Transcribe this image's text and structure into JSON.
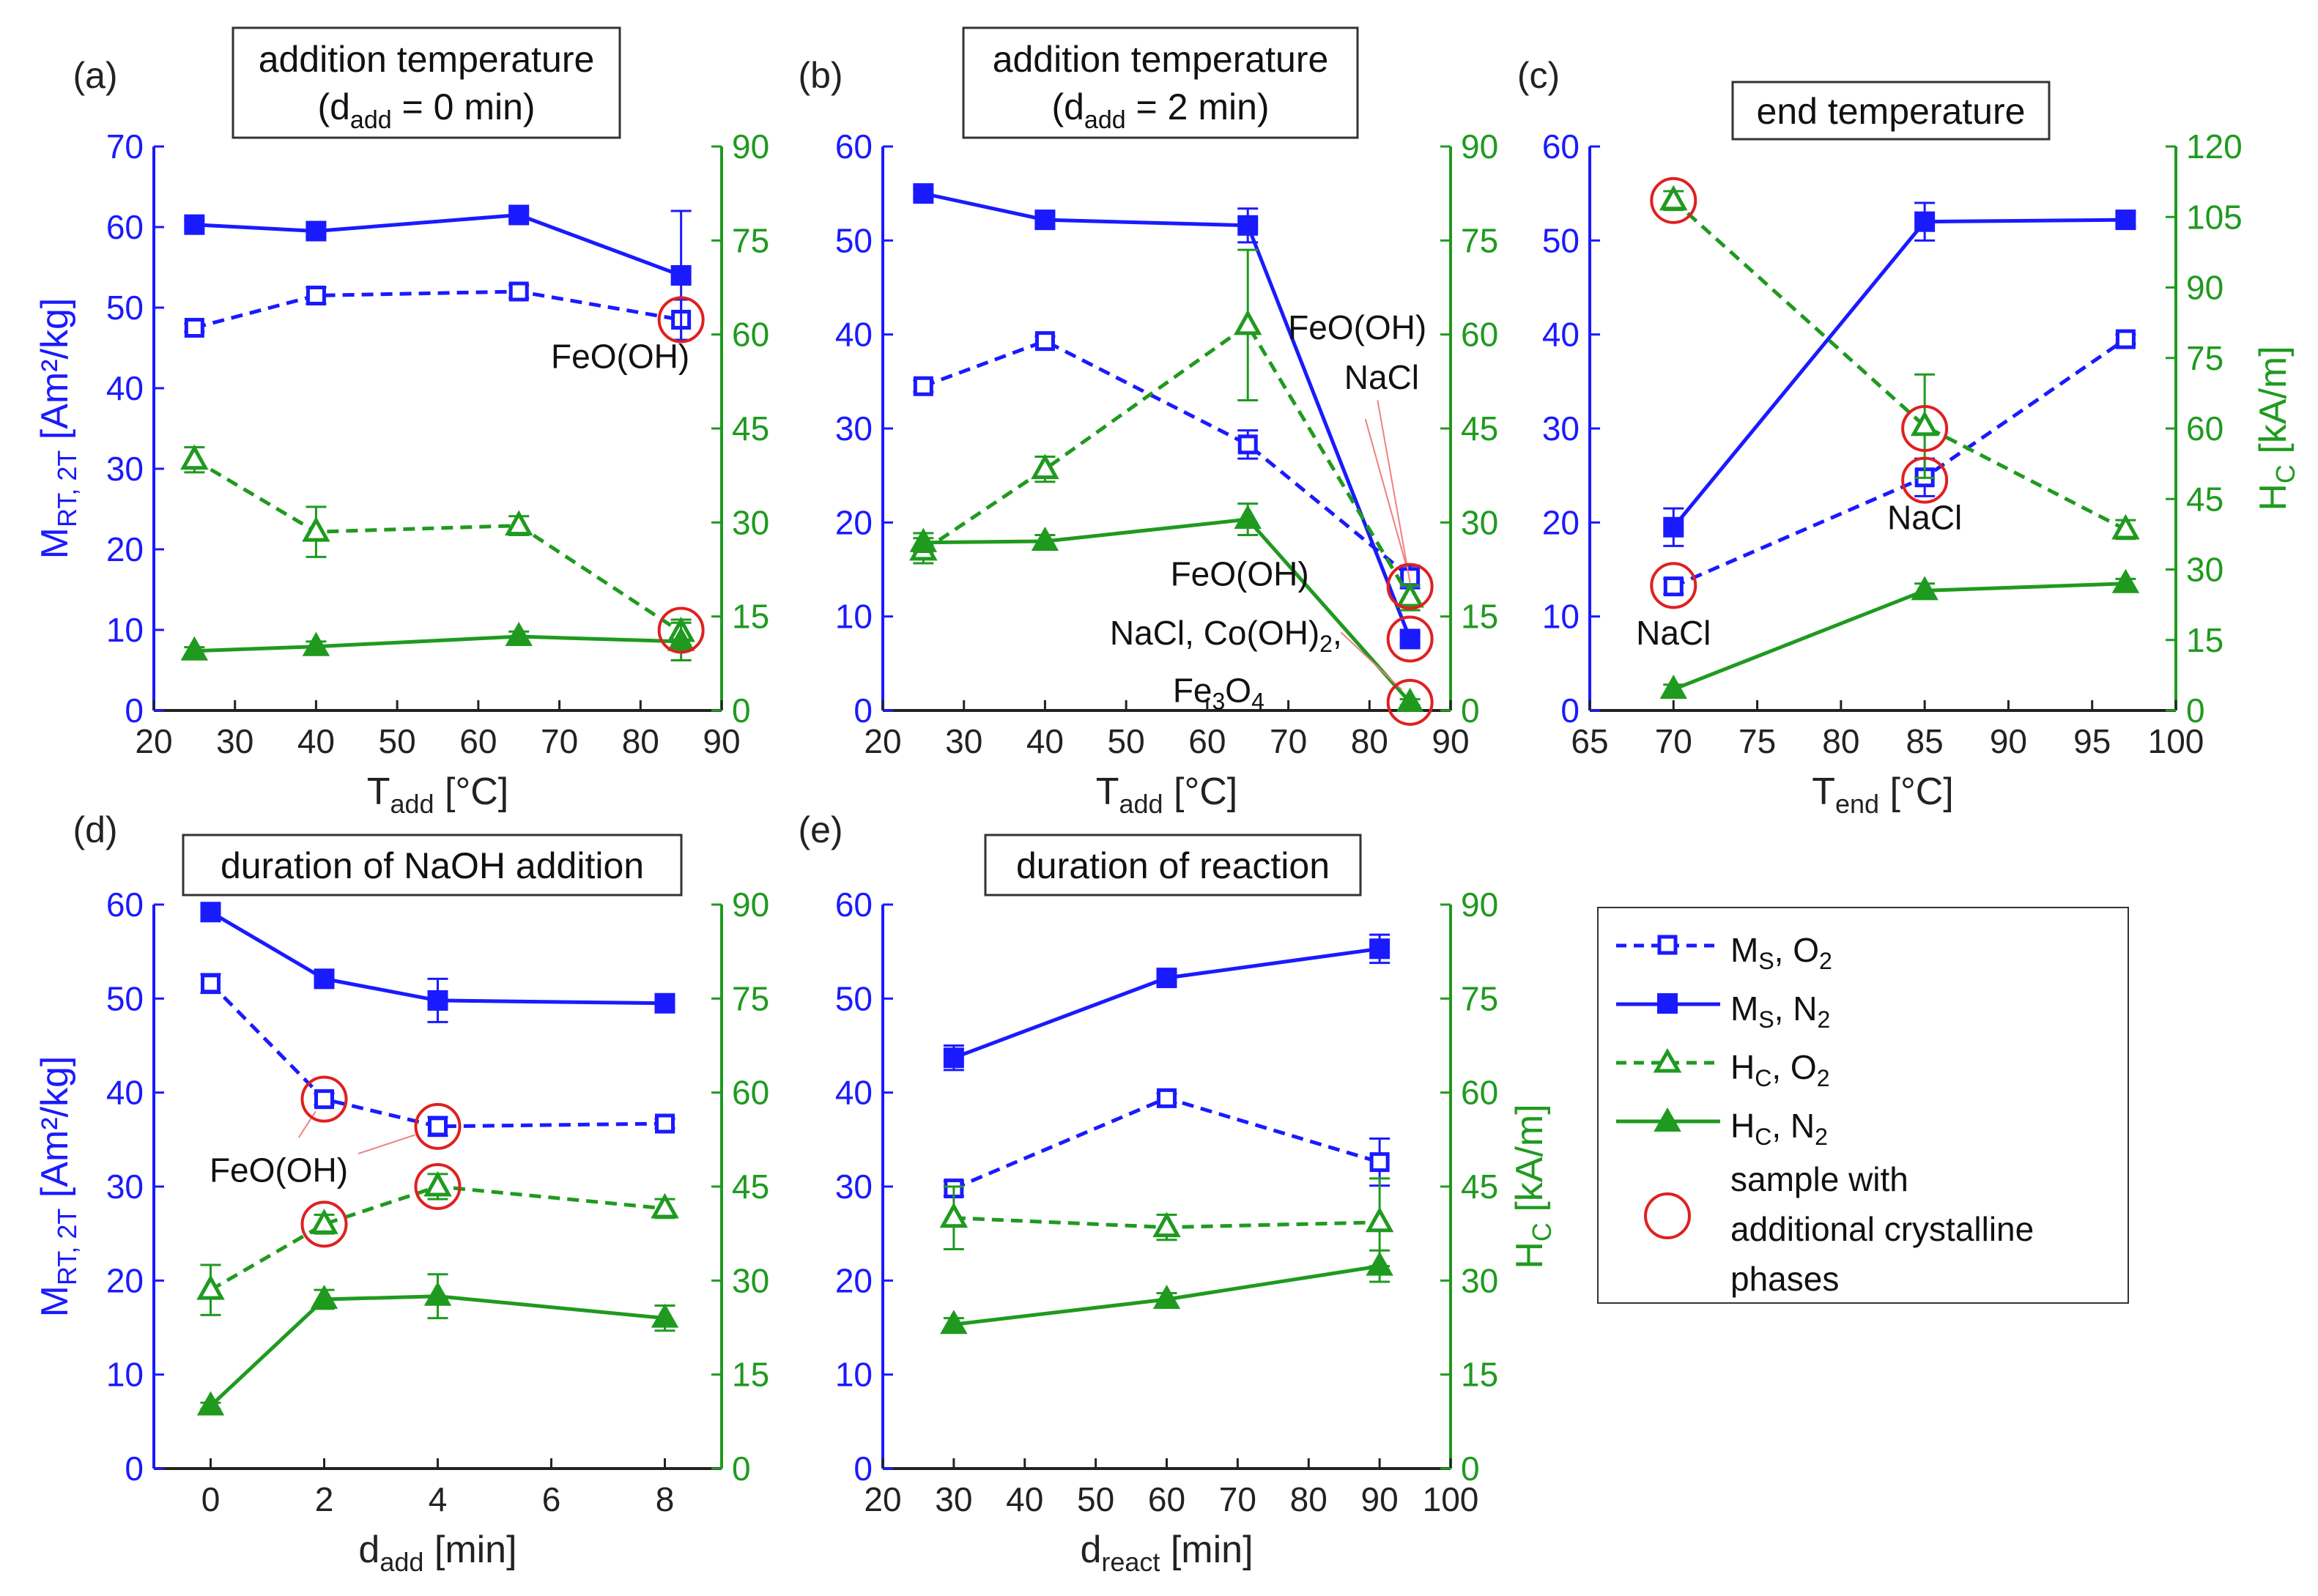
{
  "colors": {
    "blue": "#1a1aff",
    "green": "#1f9a1f",
    "red": "#e02020",
    "axis_black": "#222222"
  },
  "legend": {
    "ms_o2": "M",
    "ms_o2_sub": "S",
    "ms_o2_gas": ", O",
    "gas_sub": "2",
    "ms_n2": "M",
    "ms_n2_sub": "S",
    "ms_n2_gas": ", N",
    "hc_o2": "H",
    "hc_o2_sub": "C",
    "hc_o2_gas": ", O",
    "hc_n2": "H",
    "hc_n2_sub": "C",
    "hc_n2_gas": ", N",
    "circle_line1": "sample with",
    "circle_line2": "additional crystalline",
    "circle_line3": "phases"
  },
  "chart_data": [
    {
      "panel": "(a)",
      "type": "line",
      "title_line1": "addition temperature",
      "title_line2_pre": "(d",
      "title_line2_sub": "add",
      "title_line2_post": " = 0 min)",
      "xlabel": "T",
      "xlabel_sub": "add",
      "xlabel_unit": " [°C]",
      "ylabel_left": "M",
      "ylabel_left_sub": "RT, 2T",
      "ylabel_left_unit": " [Am²/kg]",
      "ylabel_right": "",
      "xlim": [
        20,
        90
      ],
      "xticks": [
        20,
        30,
        40,
        50,
        60,
        70,
        80,
        90
      ],
      "ylim_left": [
        0,
        70
      ],
      "yticks_left": [
        0,
        10,
        20,
        30,
        40,
        50,
        60,
        70
      ],
      "ylim_right": [
        0,
        90
      ],
      "yticks_right": [
        0,
        15,
        30,
        45,
        60,
        75,
        90
      ],
      "series": [
        {
          "name": "MS, O2",
          "axis": "left",
          "color": "blue",
          "style": "dashed",
          "marker": "open-square",
          "x": [
            25,
            40,
            65,
            85
          ],
          "y": [
            47.5,
            51.5,
            52,
            48.5
          ],
          "err": [
            0.5,
            1.0,
            0.8,
            2.5
          ]
        },
        {
          "name": "MS, N2",
          "axis": "left",
          "color": "blue",
          "style": "solid",
          "marker": "filled-square",
          "x": [
            25,
            40,
            65,
            85
          ],
          "y": [
            60.3,
            59.5,
            61.5,
            54
          ],
          "err": [
            0.6,
            0.7,
            0.6,
            8
          ]
        },
        {
          "name": "HC, O2",
          "axis": "right",
          "color": "green",
          "style": "dashed",
          "marker": "open-triangle",
          "x": [
            25,
            40,
            65,
            85
          ],
          "y": [
            40,
            28.5,
            29.5,
            12.5
          ],
          "err": [
            2,
            4,
            1.5,
            2
          ]
        },
        {
          "name": "HC, N2",
          "axis": "right",
          "color": "green",
          "style": "solid",
          "marker": "filled-triangle",
          "x": [
            25,
            40,
            65,
            85
          ],
          "y": [
            9.5,
            10.2,
            11.8,
            11
          ],
          "err": [
            0.6,
            0.8,
            0.8,
            3
          ]
        }
      ],
      "circles": [
        {
          "axis": "left",
          "x": 85,
          "y": 48.5
        },
        {
          "axis": "right",
          "x": 85,
          "y": 12.8
        }
      ],
      "annotations": [
        {
          "lines": [
            "FeO(OH)"
          ],
          "ax": "left",
          "x": 77.5,
          "y": 42.5,
          "anchor": "middle"
        }
      ]
    },
    {
      "panel": "(b)",
      "type": "line",
      "title_line1": "addition temperature",
      "title_line2_pre": "(d",
      "title_line2_sub": "add",
      "title_line2_post": " = 2 min)",
      "xlabel": "T",
      "xlabel_sub": "add",
      "xlabel_unit": " [°C]",
      "ylabel_left": "",
      "ylabel_right": "",
      "xlim": [
        20,
        90
      ],
      "xticks": [
        20,
        30,
        40,
        50,
        60,
        70,
        80,
        90
      ],
      "ylim_left": [
        0,
        60
      ],
      "yticks_left": [
        0,
        10,
        20,
        30,
        40,
        50,
        60
      ],
      "ylim_right": [
        0,
        90
      ],
      "yticks_right": [
        0,
        15,
        30,
        45,
        60,
        75,
        90
      ],
      "series": [
        {
          "name": "MS, O2",
          "axis": "left",
          "color": "blue",
          "style": "dashed",
          "marker": "open-square",
          "x": [
            25,
            40,
            65,
            85
          ],
          "y": [
            34.5,
            39.3,
            28.3,
            14.2
          ],
          "err": [
            0.6,
            0.5,
            1.5,
            1.2
          ]
        },
        {
          "name": "MS, N2",
          "axis": "left",
          "color": "blue",
          "style": "solid",
          "marker": "filled-square",
          "x": [
            25,
            40,
            65,
            85
          ],
          "y": [
            55,
            52.2,
            51.6,
            7.6
          ],
          "err": [
            0.5,
            0.8,
            1.8,
            0.6
          ]
        },
        {
          "name": "HC, O2",
          "axis": "right",
          "color": "green",
          "style": "dashed",
          "marker": "open-triangle",
          "x": [
            25,
            40,
            65,
            85
          ],
          "y": [
            25.5,
            38.5,
            61.5,
            18
          ],
          "err": [
            2,
            2,
            12,
            2
          ]
        },
        {
          "name": "HC, N2",
          "axis": "right",
          "color": "green",
          "style": "solid",
          "marker": "filled-triangle",
          "x": [
            25,
            40,
            65,
            85
          ],
          "y": [
            26.8,
            27,
            30.5,
            1.3
          ],
          "err": [
            1.5,
            1,
            2.5,
            0.5
          ]
        }
      ],
      "circles": [
        {
          "axis": "left",
          "x": 85,
          "y": 13.2
        },
        {
          "axis": "left",
          "x": 85,
          "y": 7.6
        },
        {
          "axis": "right",
          "x": 85,
          "y": 1.3
        }
      ],
      "annotations": [
        {
          "lines": [
            "FeO(OH)"
          ],
          "ax": "left",
          "x": 78.5,
          "y": 39.5,
          "anchor": "middle"
        },
        {
          "lines": [
            "NaCl"
          ],
          "ax": "left",
          "x": 81.5,
          "y": 34.2,
          "anchor": "middle"
        },
        {
          "lines": [
            "FeO(OH)"
          ],
          "ax": "left",
          "x": 64,
          "y": 13.3,
          "anchor": "middle"
        },
        {
          "lines": [
            "NaCl, Co(OH)"
          ],
          "ax": "left",
          "x": 62.3,
          "y": 7.0,
          "anchor": "middle",
          "sub": "2",
          "after": ","
        },
        {
          "lines": [
            "Fe"
          ],
          "ax": "left",
          "x": 61.4,
          "y": 0.9,
          "anchor": "middle",
          "formula": "Fe3O4"
        }
      ],
      "leaders": [
        {
          "ax": "left",
          "x1": 81.0,
          "y1": 33.0,
          "x2": 85.0,
          "y2": 13.6
        },
        {
          "ax": "left",
          "x1": 79.5,
          "y1": 31.0,
          "x2": 84.5,
          "y2": 15.5
        },
        {
          "ax": "left",
          "x1": 76.5,
          "y1": 8.3,
          "x2": 84.0,
          "y2": 2.2
        }
      ]
    },
    {
      "panel": "(c)",
      "type": "line",
      "title_line1": "end temperature",
      "xlabel": "T",
      "xlabel_sub": "end",
      "xlabel_unit": " [°C]",
      "ylabel_left": "",
      "ylabel_right": "H",
      "ylabel_right_sub": "C",
      "ylabel_right_unit": " [kA/m]",
      "xlim": [
        65,
        100
      ],
      "xticks": [
        65,
        70,
        75,
        80,
        85,
        90,
        95,
        100
      ],
      "ylim_left": [
        0,
        60
      ],
      "yticks_left": [
        0,
        10,
        20,
        30,
        40,
        50,
        60
      ],
      "ylim_right": [
        0,
        120
      ],
      "yticks_right": [
        0,
        15,
        30,
        45,
        60,
        75,
        90,
        105,
        120
      ],
      "series": [
        {
          "name": "MS, O2",
          "axis": "left",
          "color": "blue",
          "style": "dashed",
          "marker": "open-square",
          "x": [
            70,
            85,
            97
          ],
          "y": [
            13.2,
            24.8,
            39.5
          ],
          "err": [
            0.8,
            2,
            0.5
          ]
        },
        {
          "name": "MS, N2",
          "axis": "left",
          "color": "blue",
          "style": "solid",
          "marker": "filled-square",
          "x": [
            70,
            85,
            97
          ],
          "y": [
            19.5,
            52,
            52.2
          ],
          "err": [
            2,
            2,
            0.8
          ]
        },
        {
          "name": "HC, O2",
          "axis": "right",
          "color": "green",
          "style": "dashed",
          "marker": "open-triangle",
          "x": [
            70,
            85,
            97
          ],
          "y": [
            108.5,
            60.5,
            38.5
          ],
          "err": [
            2,
            11,
            2
          ]
        },
        {
          "name": "HC, N2",
          "axis": "right",
          "color": "green",
          "style": "solid",
          "marker": "filled-triangle",
          "x": [
            70,
            85,
            97
          ],
          "y": [
            4.5,
            25.5,
            27
          ],
          "err": [
            1,
            1.5,
            1
          ]
        }
      ],
      "circles": [
        {
          "axis": "right",
          "x": 70,
          "y": 108.5
        },
        {
          "axis": "left",
          "x": 85,
          "y": 30
        },
        {
          "axis": "left",
          "x": 85,
          "y": 24.5
        },
        {
          "axis": "left",
          "x": 70,
          "y": 13.3
        }
      ],
      "annotations": [
        {
          "lines": [
            "NaCl"
          ],
          "ax": "left",
          "x": 85.0,
          "y": 19.3,
          "anchor": "middle"
        },
        {
          "lines": [
            "NaCl"
          ],
          "ax": "left",
          "x": 70.0,
          "y": 7.0,
          "anchor": "middle"
        }
      ]
    },
    {
      "panel": "(d)",
      "type": "line",
      "title_line1": "duration of NaOH addition",
      "xlabel": "d",
      "xlabel_sub": "add",
      "xlabel_unit": " [min]",
      "ylabel_left": "M",
      "ylabel_left_sub": "RT, 2T",
      "ylabel_left_unit": " [Am²/kg]",
      "ylabel_right": "",
      "xlim": [
        -1,
        9
      ],
      "xticks": [
        0,
        2,
        4,
        6,
        8
      ],
      "ylim_left": [
        0,
        60
      ],
      "yticks_left": [
        0,
        10,
        20,
        30,
        40,
        50,
        60
      ],
      "ylim_right": [
        0,
        90
      ],
      "yticks_right": [
        0,
        15,
        30,
        45,
        60,
        75,
        90
      ],
      "series": [
        {
          "name": "MS, O2",
          "axis": "left",
          "color": "blue",
          "style": "dashed",
          "marker": "open-square",
          "x": [
            0,
            2,
            4,
            8
          ],
          "y": [
            51.6,
            39.3,
            36.4,
            36.7
          ],
          "err": [
            1,
            0.6,
            1,
            0.5
          ]
        },
        {
          "name": "MS, N2",
          "axis": "left",
          "color": "blue",
          "style": "solid",
          "marker": "filled-square",
          "x": [
            0,
            2,
            4,
            8
          ],
          "y": [
            59.2,
            52.1,
            49.8,
            49.5
          ],
          "err": [
            0.6,
            0.8,
            2.3,
            0.6
          ]
        },
        {
          "name": "HC, O2",
          "axis": "right",
          "color": "green",
          "style": "dashed",
          "marker": "open-triangle",
          "x": [
            0,
            2,
            4,
            8
          ],
          "y": [
            28.5,
            39,
            45,
            41.5
          ],
          "err": [
            4,
            1.5,
            2,
            1.5
          ]
        },
        {
          "name": "HC, N2",
          "axis": "right",
          "color": "green",
          "style": "solid",
          "marker": "filled-triangle",
          "x": [
            0,
            2,
            4,
            8
          ],
          "y": [
            10,
            27,
            27.5,
            24
          ],
          "err": [
            0.5,
            1.5,
            3.5,
            2
          ]
        }
      ],
      "circles": [
        {
          "axis": "left",
          "x": 2,
          "y": 39.3
        },
        {
          "axis": "left",
          "x": 4,
          "y": 36.4
        },
        {
          "axis": "right",
          "x": 2,
          "y": 39
        },
        {
          "axis": "right",
          "x": 4,
          "y": 45
        }
      ],
      "annotations": [
        {
          "lines": [
            "FeO(OH)"
          ],
          "ax": "left",
          "x": 1.2,
          "y": 30.5,
          "anchor": "middle"
        }
      ],
      "leaders": [
        {
          "ax": "left",
          "x1": 1.55,
          "y1": 35.2,
          "x2": 1.85,
          "y2": 38.0
        },
        {
          "ax": "left",
          "x1": 2.6,
          "y1": 33.5,
          "x2": 3.6,
          "y2": 35.5
        }
      ]
    },
    {
      "panel": "(e)",
      "type": "line",
      "title_line1": "duration of reaction",
      "xlabel": "d",
      "xlabel_sub": "react",
      "xlabel_unit": " [min]",
      "ylabel_left": "",
      "ylabel_right": "H",
      "ylabel_right_sub": "C",
      "ylabel_right_unit": " [kA/m]",
      "xlim": [
        20,
        100
      ],
      "xticks": [
        20,
        30,
        40,
        50,
        60,
        70,
        80,
        90,
        100
      ],
      "ylim_left": [
        0,
        60
      ],
      "yticks_left": [
        0,
        10,
        20,
        30,
        40,
        50,
        60
      ],
      "ylim_right": [
        0,
        90
      ],
      "yticks_right": [
        0,
        15,
        30,
        45,
        60,
        75,
        90
      ],
      "series": [
        {
          "name": "MS, O2",
          "axis": "left",
          "color": "blue",
          "style": "dashed",
          "marker": "open-square",
          "x": [
            30,
            60,
            90
          ],
          "y": [
            29.8,
            39.4,
            32.6
          ],
          "err": [
            0.8,
            0.5,
            2.5
          ]
        },
        {
          "name": "MS, N2",
          "axis": "left",
          "color": "blue",
          "style": "solid",
          "marker": "filled-square",
          "x": [
            30,
            60,
            90
          ],
          "y": [
            43.7,
            52.2,
            55.3
          ],
          "err": [
            1.3,
            0.8,
            1.5
          ]
        },
        {
          "name": "HC, O2",
          "axis": "right",
          "color": "green",
          "style": "dashed",
          "marker": "open-triangle",
          "x": [
            30,
            60,
            90
          ],
          "y": [
            40,
            38.5,
            39.3
          ],
          "err": [
            5,
            2,
            7
          ]
        },
        {
          "name": "HC, N2",
          "axis": "right",
          "color": "green",
          "style": "solid",
          "marker": "filled-triangle",
          "x": [
            30,
            60,
            90
          ],
          "y": [
            23,
            27,
            32.3
          ],
          "err": [
            1,
            1,
            2.5
          ]
        }
      ],
      "circles": [],
      "annotations": []
    }
  ]
}
